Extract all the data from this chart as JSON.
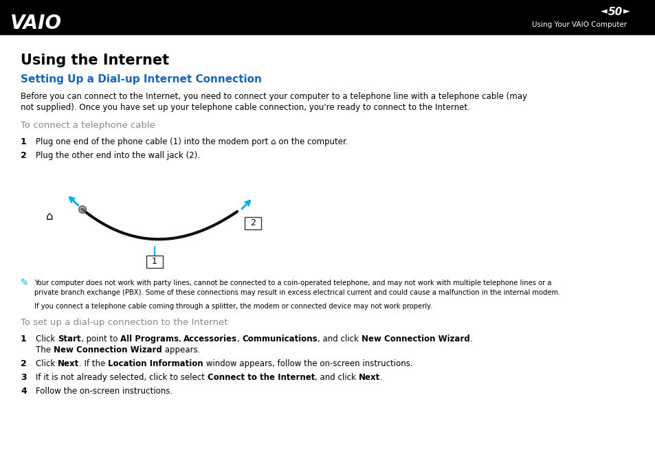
{
  "bg_color": "#ffffff",
  "header_bg": "#000000",
  "header_text_color": "#ffffff",
  "header_page_num": "50",
  "header_subtitle": "Using Your VAIO Computer",
  "title_main": "Using the Internet",
  "title_section": "Setting Up a Dial-up Internet Connection",
  "title_section_color": "#1565C0",
  "body_color": "#000000",
  "gray_color": "#888888",
  "blue_color": "#00AAEE",
  "cable_color": "#111111",
  "para1_line1": "Before you can connect to the Internet, you need to connect your computer to a telephone line with a telephone cable (may",
  "para1_line2": "not supplied). Once you have set up your telephone cable connection, you're ready to connect to the Internet.",
  "subsection1": "To connect a telephone cable",
  "note_text1": "Your computer does not work with party lines, cannot be connected to a coin-operated telephone, and may not work with multiple telephone lines or a",
  "note_text1b": "private branch exchange (PBX). Some of these connections may result in excess electrical current and could cause a malfunction in the internal modem.",
  "note_text2": "If you connect a telephone cable coming through a splitter, the modem or connected device may not work properly.",
  "subsection2": "To set up a dial-up connection to the Internet"
}
